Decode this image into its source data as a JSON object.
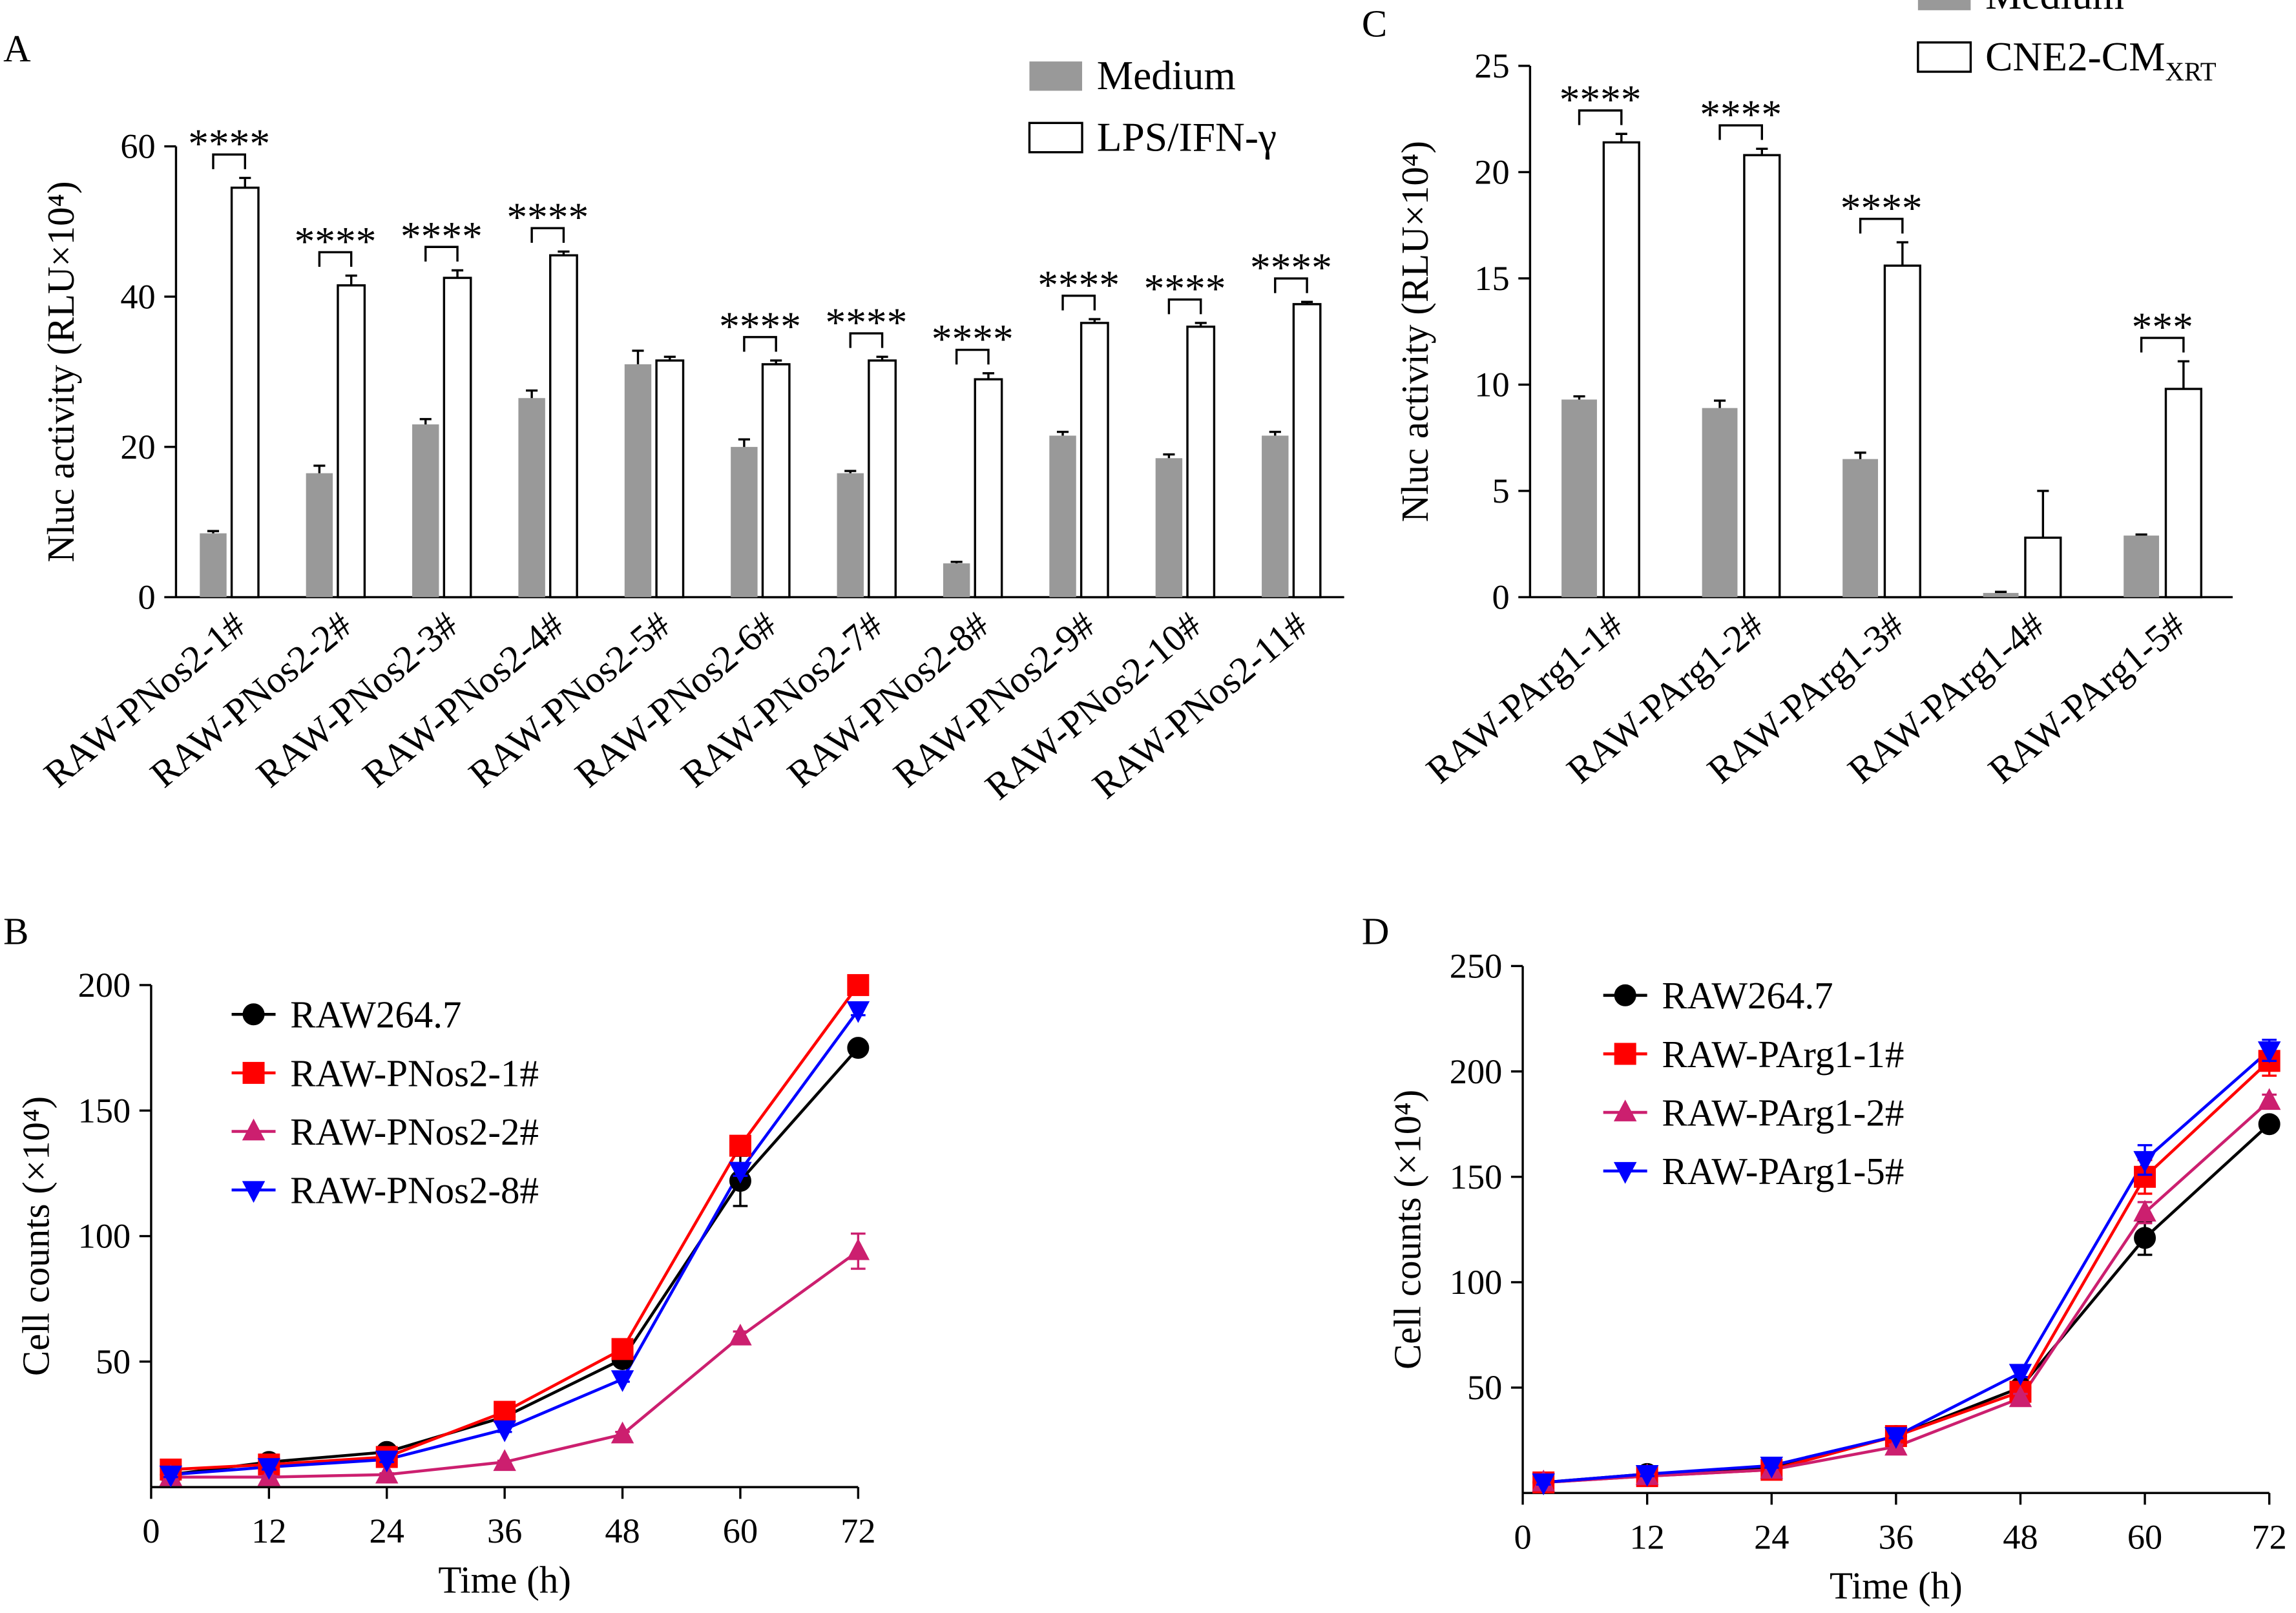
{
  "chart_data": [
    {
      "type": "bar",
      "panel_label": "A",
      "y_label": "Nluc activity (RLU×10⁴)",
      "categories": [
        "RAW-PNos2-1#",
        "RAW-PNos2-2#",
        "RAW-PNos2-3#",
        "RAW-PNos2-4#",
        "RAW-PNos2-5#",
        "RAW-PNos2-6#",
        "RAW-PNos2-7#",
        "RAW-PNos2-8#",
        "RAW-PNos2-9#",
        "RAW-PNos2-10#",
        "RAW-PNos2-11#"
      ],
      "series": [
        {
          "name": "Medium",
          "color": "#999999",
          "values": [
            8.5,
            16.5,
            23,
            26.5,
            31,
            20,
            16.5,
            4.5,
            21.5,
            18.5,
            21.5
          ],
          "errors": [
            0.3,
            1,
            0.7,
            1,
            1.8,
            1,
            0.3,
            0.2,
            0.5,
            0.5,
            0.5
          ]
        },
        {
          "name": "LPS/IFN-γ",
          "color": "#ffffff",
          "values": [
            54.5,
            41.5,
            42.5,
            45.5,
            31.5,
            31,
            31.5,
            29,
            36.5,
            36,
            39
          ],
          "errors": [
            1.3,
            1.3,
            1,
            0.5,
            0.5,
            0.5,
            0.5,
            0.8,
            0.5,
            0.5,
            0.3
          ]
        }
      ],
      "significance": [
        "****",
        "****",
        "****",
        "****",
        null,
        "****",
        "****",
        "****",
        "****",
        "****",
        "****"
      ],
      "ylim": [
        0,
        60
      ],
      "yticks": [
        0,
        20,
        40,
        60
      ],
      "legend": "upper right"
    },
    {
      "type": "line",
      "panel_label": "B",
      "x_label": "Time (h)",
      "y_label": "Cell counts (×10⁴)",
      "x": [
        2,
        12,
        24,
        36,
        48,
        60,
        72
      ],
      "series": [
        {
          "name": "RAW264.7",
          "color": "#000000",
          "marker": "circle",
          "values": [
            5,
            10,
            14,
            28,
            51,
            122,
            175
          ],
          "errors": [
            1,
            1,
            1,
            1,
            2,
            10,
            2
          ]
        },
        {
          "name": "RAW-PNos2-1#",
          "color": "#ff0000",
          "marker": "square",
          "values": [
            7,
            9,
            12,
            30,
            55,
            136,
            200
          ],
          "errors": [
            1,
            1,
            1,
            1,
            1,
            2,
            2
          ]
        },
        {
          "name": "RAW-PNos2-2#",
          "color": "#cc1f6f",
          "marker": "triangle-up",
          "values": [
            4,
            4,
            5,
            10,
            21,
            60,
            94
          ],
          "errors": [
            0.5,
            0.5,
            0.5,
            0.5,
            1,
            2,
            7
          ]
        },
        {
          "name": "RAW-PNos2-8#",
          "color": "#0000ff",
          "marker": "triangle-down",
          "values": [
            5,
            8,
            11,
            23,
            43,
            126,
            190
          ],
          "errors": [
            1,
            1,
            1,
            1,
            1,
            2,
            2
          ]
        }
      ],
      "xlim": [
        0,
        72
      ],
      "xticks": [
        0,
        12,
        24,
        36,
        48,
        60,
        72
      ],
      "ylim": [
        0,
        200
      ],
      "yticks": [
        50,
        100,
        150,
        200
      ],
      "legend": "upper left"
    },
    {
      "type": "bar",
      "panel_label": "C",
      "y_label": "Nluc activity (RLU×10⁴)",
      "categories": [
        "RAW-PArg1-1#",
        "RAW-PArg1-2#",
        "RAW-PArg1-3#",
        "RAW-PArg1-4#",
        "RAW-PArg1-5#"
      ],
      "series": [
        {
          "name": "Medium",
          "color": "#999999",
          "values": [
            9.3,
            8.9,
            6.5,
            0.2,
            2.9
          ],
          "errors": [
            0.15,
            0.35,
            0.3,
            0.05,
            0.05
          ]
        },
        {
          "name": "CNE2-CM",
          "name_subscript": "XRT",
          "color": "#ffffff",
          "values": [
            21.4,
            20.8,
            15.6,
            2.8,
            9.8
          ],
          "errors": [
            0.4,
            0.3,
            1.1,
            2.2,
            1.3
          ]
        }
      ],
      "significance": [
        "****",
        "****",
        "****",
        null,
        "***"
      ],
      "ylim": [
        0,
        25
      ],
      "yticks": [
        0,
        5,
        10,
        15,
        20,
        25
      ],
      "legend": "upper right"
    },
    {
      "type": "line",
      "panel_label": "D",
      "x_label": "Time (h)",
      "y_label": "Cell counts (×10⁴)",
      "x": [
        2,
        12,
        24,
        36,
        48,
        60,
        72
      ],
      "series": [
        {
          "name": "RAW264.7",
          "color": "#000000",
          "marker": "circle",
          "values": [
            5,
            9,
            12,
            27,
            50,
            121,
            175
          ],
          "errors": [
            1,
            1,
            1,
            2,
            3,
            8,
            2
          ]
        },
        {
          "name": "RAW-PArg1-1#",
          "color": "#ff0000",
          "marker": "square",
          "values": [
            5,
            8,
            11,
            27,
            48,
            150,
            205
          ],
          "errors": [
            1,
            1,
            1,
            1,
            2,
            8,
            7
          ]
        },
        {
          "name": "RAW-PArg1-2#",
          "color": "#cc1f6f",
          "marker": "triangle-up",
          "values": [
            5,
            8,
            11,
            22,
            45,
            133,
            186
          ],
          "errors": [
            1,
            1,
            1,
            1,
            2,
            5,
            3
          ]
        },
        {
          "name": "RAW-PArg1-5#",
          "color": "#0000ff",
          "marker": "triangle-down",
          "values": [
            5,
            9,
            13,
            27,
            57,
            158,
            210
          ],
          "errors": [
            1,
            1,
            1,
            1,
            2,
            7,
            5
          ]
        }
      ],
      "xlim": [
        0,
        72
      ],
      "xticks": [
        0,
        12,
        24,
        36,
        48,
        60,
        72
      ],
      "ylim": [
        0,
        250
      ],
      "yticks": [
        50,
        100,
        150,
        200,
        250
      ],
      "legend": "upper left"
    }
  ]
}
